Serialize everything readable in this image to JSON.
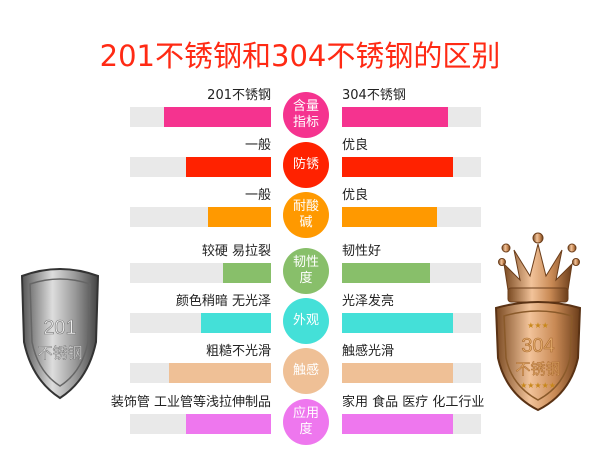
{
  "title": "201不锈钢和304不锈钢的区别",
  "chart_data": {
    "type": "bar",
    "layout": "butterfly",
    "series": [
      {
        "name": "201不锈钢",
        "values": [
          0.76,
          0.6,
          0.45,
          0.34,
          0.5,
          0.72,
          0.6
        ]
      },
      {
        "name": "304不锈钢",
        "values": [
          0.76,
          0.8,
          0.68,
          0.63,
          0.8,
          0.8,
          0.8
        ]
      }
    ],
    "categories": [
      "含量指标",
      "防锈",
      "耐酸碱",
      "韧性度",
      "外观",
      "触感",
      "应用度"
    ],
    "xlim": [
      0,
      1
    ]
  },
  "rows": [
    {
      "category": "含量指标",
      "left_label": "201不锈钢",
      "right_label": "304不锈钢",
      "color": "#f5338f"
    },
    {
      "category": "防锈",
      "left_label": "一般",
      "right_label": "优良",
      "color": "#ff2200"
    },
    {
      "category": "耐酸碱",
      "left_label": "一般",
      "right_label": "优良",
      "color": "#ff9900"
    },
    {
      "category": "韧性度",
      "left_label": "较硬 易拉裂",
      "right_label": "韧性好",
      "color": "#88bf6a"
    },
    {
      "category": "外观",
      "left_label": "颜色稍暗 无光泽",
      "right_label": "光泽发亮",
      "color": "#44e0d8"
    },
    {
      "category": "触感",
      "left_label": "粗糙不光滑",
      "right_label": "触感光滑",
      "color": "#efc096"
    },
    {
      "category": "应用度",
      "left_label": "装饰管 工业管等浅拉伸制品",
      "right_label": "家用 食品 医疗 化工行业",
      "color": "#ee77ee"
    }
  ],
  "shields": {
    "left": {
      "number": "201",
      "text": "不锈钢",
      "icon": "silver-shield-icon"
    },
    "right": {
      "number": "304",
      "text": "不锈钢",
      "icon": "gold-crown-shield-icon"
    }
  }
}
